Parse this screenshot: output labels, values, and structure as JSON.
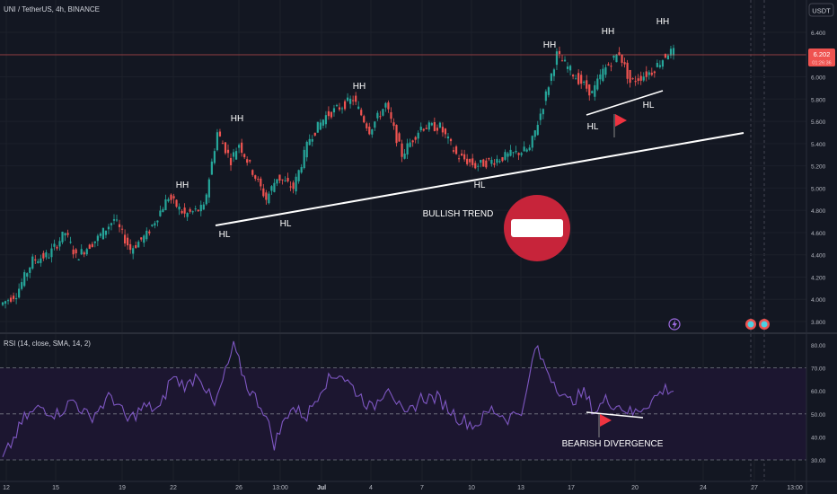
{
  "header": {
    "symbol_title": "UNI / TetherUS, 4h, BINANCE",
    "currency_badge": "USDT"
  },
  "colors": {
    "background": "#131722",
    "grid": "#1f2330",
    "up": "#26a69a",
    "down": "#ef5350",
    "annotation": "#ffffff",
    "rsi_line": "#7e57c2",
    "rsi_band": "#1c1630",
    "price_badge": "#ef5350",
    "stop_sign": "#c7243a"
  },
  "price_axis": {
    "ticks": [
      "6.400",
      "6.200",
      "6.000",
      "5.800",
      "5.600",
      "5.400",
      "5.200",
      "5.000",
      "4.800",
      "4.600",
      "4.400",
      "4.200",
      "4.000",
      "3.800"
    ],
    "current_price": "6.202",
    "current_price_sub": "01:26:36"
  },
  "rsi_panel": {
    "title": "RSI (14, close, SMA, 14, 2)",
    "ticks": [
      "80.00",
      "70.00",
      "60.00",
      "50.00",
      "40.00",
      "30.00"
    ],
    "bands": [
      70,
      50,
      30
    ]
  },
  "time_axis": {
    "labels": [
      "12",
      "15",
      "19",
      "22",
      "26",
      "13:00",
      "Jul",
      "4",
      "7",
      "10",
      "13",
      "17",
      "20",
      "24",
      "27",
      "13:00"
    ]
  },
  "annotations": {
    "hh": [
      "HH",
      "HH",
      "HH",
      "HH",
      "HH",
      "HH"
    ],
    "hl": [
      "HL",
      "HL",
      "HL",
      "HL",
      "HL"
    ],
    "bullish_trend": "BULLISH TREND",
    "bearish_divergence": "BEARISH DIVERGENCE"
  },
  "chart_data": {
    "type": "candlestick",
    "title": "UNI / TetherUS, 4h, BINANCE",
    "ylim": [
      3.72,
      6.5
    ],
    "swing_path": [
      [
        0,
        3.95
      ],
      [
        6,
        4.05
      ],
      [
        12,
        4.35
      ],
      [
        18,
        4.4
      ],
      [
        24,
        4.6
      ],
      [
        28,
        4.38
      ],
      [
        36,
        4.55
      ],
      [
        42,
        4.72
      ],
      [
        48,
        4.45
      ],
      [
        54,
        4.58
      ],
      [
        62,
        4.92
      ],
      [
        68,
        4.76
      ],
      [
        75,
        4.82
      ],
      [
        80,
        5.5
      ],
      [
        85,
        5.25
      ],
      [
        88,
        5.4
      ],
      [
        98,
        4.9
      ],
      [
        102,
        5.1
      ],
      [
        108,
        5.0
      ],
      [
        114,
        5.45
      ],
      [
        120,
        5.65
      ],
      [
        130,
        5.8
      ],
      [
        136,
        5.52
      ],
      [
        142,
        5.75
      ],
      [
        148,
        5.3
      ],
      [
        155,
        5.55
      ],
      [
        162,
        5.55
      ],
      [
        168,
        5.3
      ],
      [
        175,
        5.2
      ],
      [
        182,
        5.25
      ],
      [
        188,
        5.3
      ],
      [
        195,
        5.35
      ],
      [
        200,
        5.75
      ],
      [
        205,
        6.2
      ],
      [
        212,
        6.0
      ],
      [
        218,
        5.85
      ],
      [
        222,
        6.05
      ],
      [
        228,
        6.22
      ],
      [
        232,
        5.95
      ],
      [
        240,
        6.05
      ],
      [
        246,
        6.22
      ]
    ],
    "rsi_path": [
      [
        0,
        30
      ],
      [
        8,
        48
      ],
      [
        14,
        53
      ],
      [
        20,
        50
      ],
      [
        26,
        56
      ],
      [
        32,
        48
      ],
      [
        40,
        58
      ],
      [
        46,
        47
      ],
      [
        52,
        53
      ],
      [
        58,
        52
      ],
      [
        62,
        66
      ],
      [
        68,
        62
      ],
      [
        72,
        68
      ],
      [
        78,
        53
      ],
      [
        85,
        79
      ],
      [
        90,
        62
      ],
      [
        96,
        52
      ],
      [
        100,
        37
      ],
      [
        106,
        53
      ],
      [
        112,
        49
      ],
      [
        118,
        63
      ],
      [
        124,
        68
      ],
      [
        130,
        60
      ],
      [
        136,
        52
      ],
      [
        142,
        63
      ],
      [
        148,
        48
      ],
      [
        154,
        57
      ],
      [
        160,
        57
      ],
      [
        168,
        48
      ],
      [
        174,
        45
      ],
      [
        180,
        52
      ],
      [
        186,
        48
      ],
      [
        192,
        53
      ],
      [
        196,
        79
      ],
      [
        202,
        66
      ],
      [
        208,
        55
      ],
      [
        214,
        59
      ],
      [
        218,
        51
      ],
      [
        222,
        56
      ],
      [
        228,
        53
      ],
      [
        232,
        50
      ],
      [
        238,
        55
      ],
      [
        244,
        61
      ],
      [
        248,
        60
      ]
    ]
  }
}
